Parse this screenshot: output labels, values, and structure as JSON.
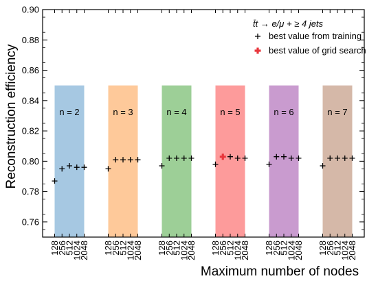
{
  "chart_data": {
    "type": "scatter",
    "xlabel": "Maximum number of nodes",
    "ylabel": "Reconstruction efficiency",
    "ylim": [
      0.75,
      0.9
    ],
    "yticks": [
      "0.76",
      "0.78",
      "0.80",
      "0.82",
      "0.84",
      "0.86",
      "0.88",
      "0.90"
    ],
    "node_labels": [
      "128",
      "256",
      "512",
      "1024",
      "2048"
    ],
    "legend": {
      "title": "t̄t → e/μ + ≥ 4 jets",
      "entries": [
        {
          "label": "best value from training",
          "marker": "+",
          "color": "#000000"
        },
        {
          "label": "best value of grid search",
          "marker": "bold-plus",
          "color": "#e8363c"
        }
      ],
      "position": "top-right"
    },
    "band_top": 0.85,
    "groups": [
      {
        "label": "n = 2",
        "color": "#a6c8e2",
        "values": [
          0.787,
          0.795,
          0.797,
          0.796,
          0.796
        ]
      },
      {
        "label": "n = 3",
        "color": "#fec99a",
        "values": [
          0.795,
          0.801,
          0.801,
          0.801,
          0.801
        ]
      },
      {
        "label": "n = 4",
        "color": "#9dcf97",
        "values": [
          0.797,
          0.802,
          0.802,
          0.802,
          0.802
        ]
      },
      {
        "label": "n = 5",
        "color": "#fd9b9b",
        "values": [
          0.798,
          0.803,
          0.803,
          0.802,
          0.802
        ],
        "best_index": 1
      },
      {
        "label": "n = 6",
        "color": "#c99bcf",
        "values": [
          0.798,
          0.803,
          0.803,
          0.802,
          0.802
        ]
      },
      {
        "label": "n = 7",
        "color": "#d5b8a8",
        "values": [
          0.797,
          0.802,
          0.802,
          0.802,
          0.802
        ]
      }
    ]
  }
}
